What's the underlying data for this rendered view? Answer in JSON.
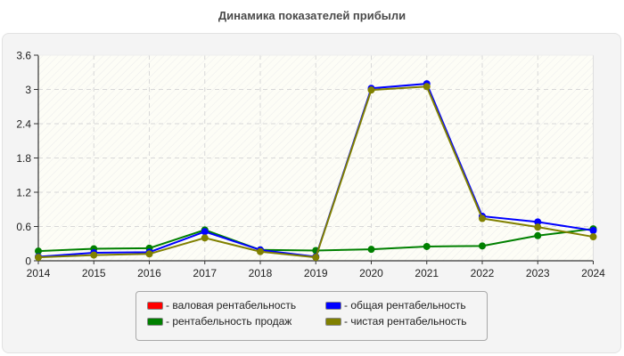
{
  "title": "Динамика показателей прибыли",
  "legend": [
    {
      "label": "- валовая рентабельность",
      "color": "#ff0000"
    },
    {
      "label": "- общая рентабельность",
      "color": "#0000ff"
    },
    {
      "label": "- рентабельность продаж",
      "color": "#008000"
    },
    {
      "label": "- чистая рентабельность",
      "color": "#808000"
    }
  ],
  "chart_data": {
    "type": "line",
    "title": "Динамика показателей прибыли",
    "xlabel": "",
    "ylabel": "",
    "x": [
      "2014",
      "2015",
      "2016",
      "2017",
      "2018",
      "2019",
      "2020",
      "2021",
      "2022",
      "2023",
      "2024"
    ],
    "ylim": [
      0,
      3.6
    ],
    "yticks": [
      "0",
      "0.6",
      "1.2",
      "1.8",
      "2.4",
      "3",
      "3.6"
    ],
    "grid": true,
    "legend_position": "bottom",
    "series": [
      {
        "name": "валовая рентабельность",
        "color": "#ff0000",
        "values": [
          null,
          null,
          null,
          null,
          null,
          null,
          null,
          null,
          null,
          null,
          null
        ]
      },
      {
        "name": "общая рентабельность",
        "color": "#0000ff",
        "values": [
          0.07,
          0.14,
          0.15,
          0.51,
          0.19,
          0.07,
          3.02,
          3.1,
          0.78,
          0.68,
          0.53
        ]
      },
      {
        "name": "рентабельность продаж",
        "color": "#008000",
        "values": [
          0.17,
          0.21,
          0.22,
          0.54,
          0.19,
          0.18,
          0.2,
          0.25,
          0.26,
          0.44,
          0.56
        ]
      },
      {
        "name": "чистая рентабельность",
        "color": "#808000",
        "values": [
          0.06,
          0.1,
          0.12,
          0.4,
          0.16,
          0.06,
          2.99,
          3.05,
          0.74,
          0.59,
          0.42
        ]
      }
    ]
  }
}
